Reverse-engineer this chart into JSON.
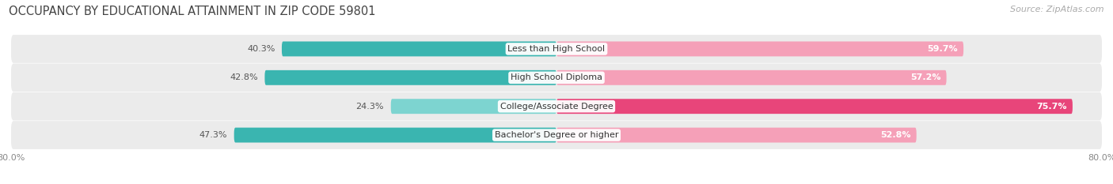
{
  "title": "OCCUPANCY BY EDUCATIONAL ATTAINMENT IN ZIP CODE 59801",
  "source": "Source: ZipAtlas.com",
  "categories": [
    "Less than High School",
    "High School Diploma",
    "College/Associate Degree",
    "Bachelor's Degree or higher"
  ],
  "owner_values": [
    40.3,
    42.8,
    24.3,
    47.3
  ],
  "renter_values": [
    59.7,
    57.2,
    75.7,
    52.8
  ],
  "owner_colors": [
    "#3ab5b0",
    "#3ab5b0",
    "#7dd4d0",
    "#3ab5b0"
  ],
  "renter_colors": [
    "#f5a0b8",
    "#f5a0b8",
    "#e8457a",
    "#f5a0b8"
  ],
  "row_bg_color": "#ebebeb",
  "xlim_left": -80.0,
  "xlim_right": 80.0,
  "title_fontsize": 10.5,
  "source_fontsize": 8,
  "value_fontsize": 8,
  "cat_fontsize": 8,
  "legend_fontsize": 8.5,
  "background_color": "#ffffff"
}
